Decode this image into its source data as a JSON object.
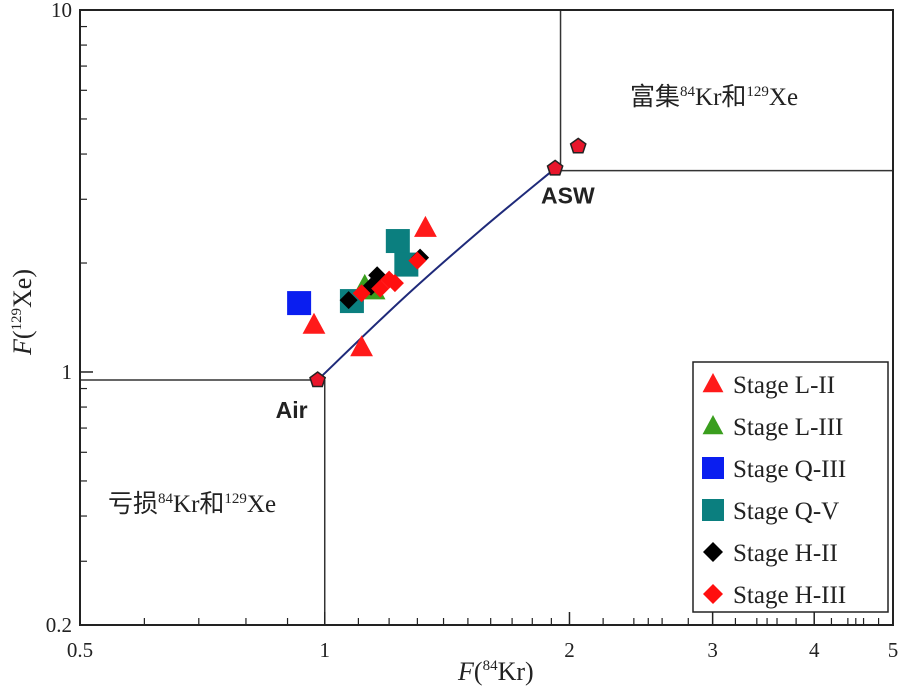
{
  "chart_data": {
    "type": "scatter",
    "title": "",
    "xlabel_prefix": "F",
    "xlabel_paren_open": "(",
    "xlabel_sup": "84",
    "xlabel_element": "Kr",
    "xlabel_paren_close": ")",
    "ylabel_prefix": "F",
    "ylabel_paren_open": "(",
    "ylabel_sup": "129",
    "ylabel_element": "Xe",
    "ylabel_paren_close": ")",
    "x_scale": "log",
    "y_scale": "log",
    "xlim": [
      0.5,
      5
    ],
    "ylim": [
      0.2,
      10
    ],
    "x_ticks": [
      {
        "value": 0.5,
        "label": "0.5"
      },
      {
        "value": 1,
        "label": "1"
      },
      {
        "value": 2,
        "label": "2"
      },
      {
        "value": 3,
        "label": "3"
      },
      {
        "value": 4,
        "label": "4"
      },
      {
        "value": 5,
        "label": "5"
      }
    ],
    "y_ticks": [
      {
        "value": 0.2,
        "label": "0.2"
      },
      {
        "value": 1,
        "label": "1"
      },
      {
        "value": 10,
        "label": "10"
      }
    ],
    "grid": false,
    "legend_position": "bottom-right",
    "regions": {
      "enriched": {
        "x_from": 1.95,
        "y_from": 3.6,
        "text_a": "富集",
        "sup_a": "84",
        "text_b": "Kr和",
        "sup_b": "129",
        "text_c": "Xe"
      },
      "depleted": {
        "x_to": 1.0,
        "y_to": 0.95,
        "text_a": "亏损",
        "sup_a": "84",
        "text_b": "Kr和",
        "sup_b": "129",
        "text_c": "Xe"
      }
    },
    "reference_points": [
      {
        "name": "Air",
        "x": 0.98,
        "y": 0.95
      },
      {
        "name": "ASW",
        "x": 1.92,
        "y": 3.65
      },
      {
        "name": "",
        "x": 2.05,
        "y": 4.2
      }
    ],
    "mixing_curve": [
      [
        0.98,
        0.95
      ],
      [
        1.25,
        1.6
      ],
      [
        1.55,
        2.45
      ],
      [
        1.92,
        3.65
      ]
    ],
    "series": [
      {
        "name": "Stage L-II",
        "marker": "triangle",
        "color": "#ff1a1a",
        "points": [
          [
            0.97,
            1.35
          ],
          [
            1.11,
            1.17
          ],
          [
            1.33,
            2.5
          ]
        ]
      },
      {
        "name": "Stage L-III",
        "marker": "triangle",
        "color": "#3a9e1e",
        "points": [
          [
            1.12,
            1.73
          ],
          [
            1.15,
            1.68
          ]
        ]
      },
      {
        "name": "Stage Q-III",
        "marker": "square",
        "color": "#0a1ef0",
        "points": [
          [
            0.93,
            1.55
          ]
        ]
      },
      {
        "name": "Stage Q-V",
        "marker": "square",
        "color": "#0b7f7f",
        "points": [
          [
            1.08,
            1.57
          ],
          [
            1.23,
            2.3
          ],
          [
            1.26,
            1.98
          ]
        ]
      },
      {
        "name": "Stage H-II",
        "marker": "diamond",
        "color": "#000000",
        "points": [
          [
            1.07,
            1.58
          ],
          [
            1.14,
            1.72
          ],
          [
            1.16,
            1.85
          ],
          [
            1.31,
            2.07
          ]
        ]
      },
      {
        "name": "Stage H-III",
        "marker": "diamond",
        "color": "#ff0f0f",
        "points": [
          [
            1.11,
            1.65
          ],
          [
            1.17,
            1.7
          ],
          [
            1.2,
            1.8
          ],
          [
            1.22,
            1.76
          ],
          [
            1.3,
            2.03
          ]
        ]
      }
    ]
  }
}
